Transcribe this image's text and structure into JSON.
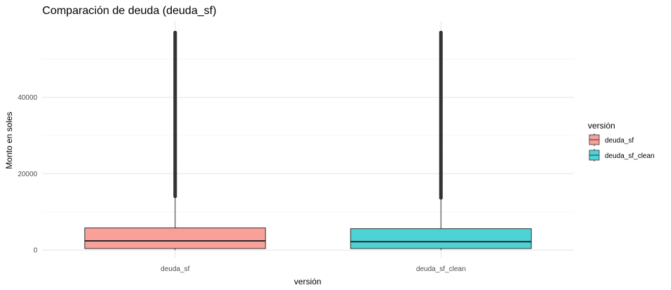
{
  "chart_data": {
    "type": "boxplot",
    "title": "Comparación de deuda (deuda_sf)",
    "xlabel": "versión",
    "ylabel": "Monto en soles",
    "categories": [
      "deuda_sf",
      "deuda_sf_clean"
    ],
    "ylim": [
      -2000,
      60000
    ],
    "y_ticks": [
      0,
      20000,
      40000
    ],
    "y_tick_labels": [
      "0",
      "20000",
      "40000"
    ],
    "grid": true,
    "legend": {
      "title": "versión",
      "position": "right",
      "entries": [
        "deuda_sf",
        "deuda_sf_clean"
      ]
    },
    "series": [
      {
        "category": "deuda_sf",
        "color": "#f8a09a",
        "q1": 400,
        "median": 2400,
        "q3": 5800,
        "whisker_low": 0,
        "whisker_high": 13800,
        "outliers_min": 13800,
        "outliers_max": 57000
      },
      {
        "category": "deuda_sf_clean",
        "color": "#4dd2d6",
        "q1": 400,
        "median": 2200,
        "q3": 5600,
        "whisker_low": 0,
        "whisker_high": 13400,
        "outliers_min": 13400,
        "outliers_max": 57000
      }
    ]
  }
}
